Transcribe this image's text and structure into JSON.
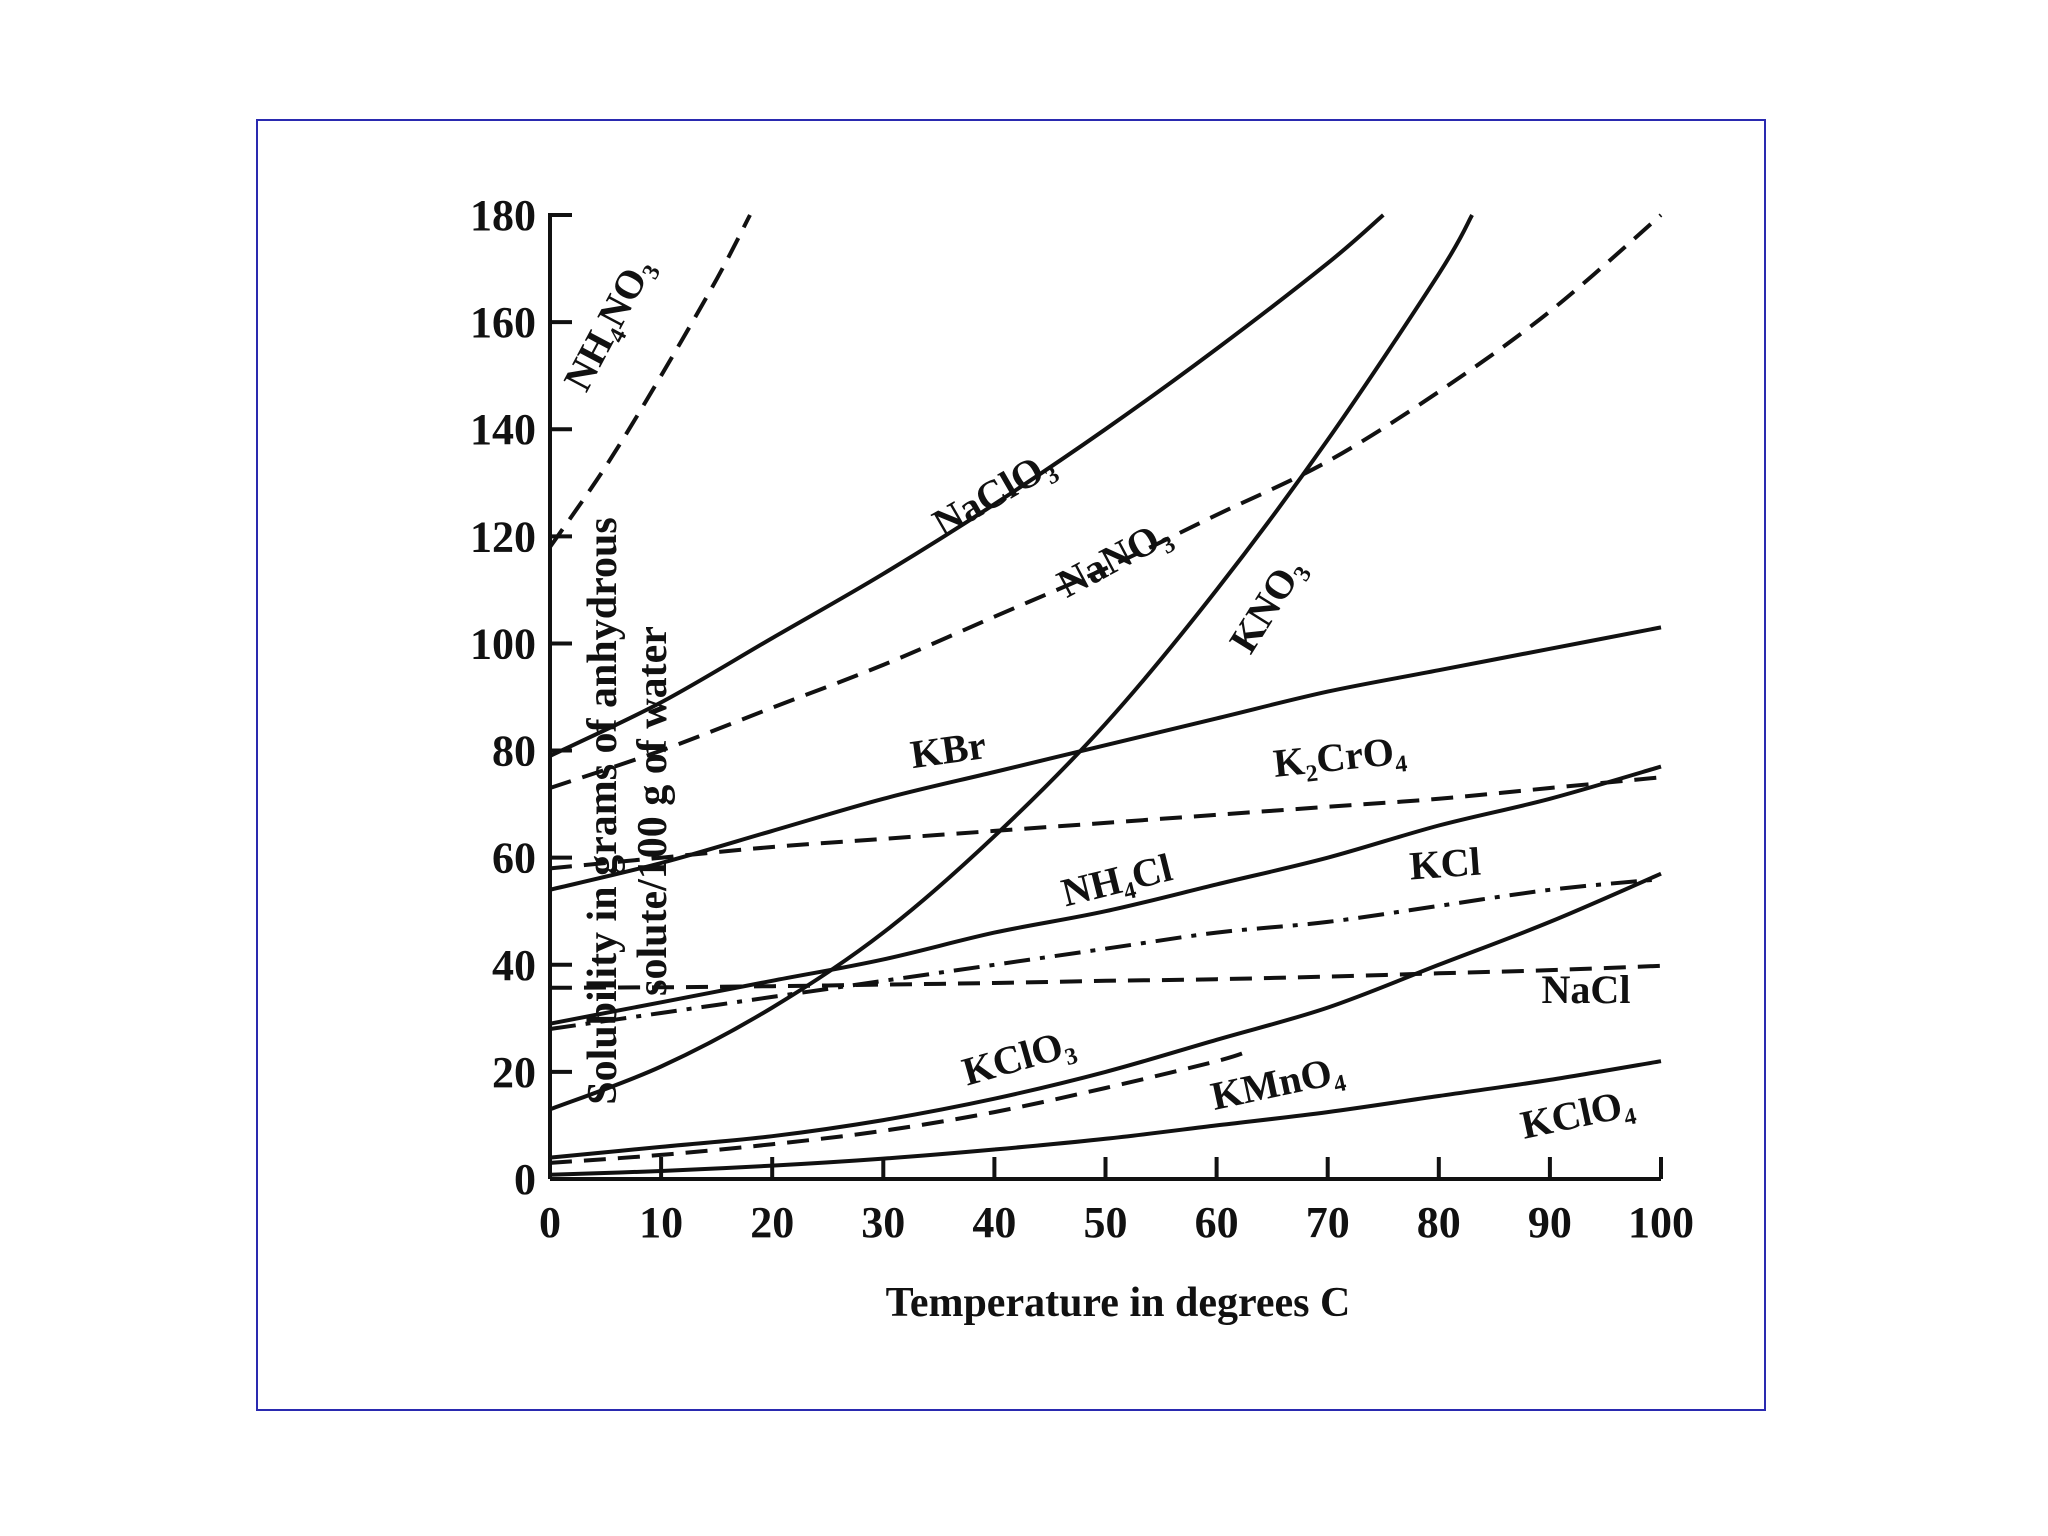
{
  "chart_data": {
    "type": "line",
    "xlabel": "Temperature in degrees C",
    "ylabel_lines": [
      "Solubility in grams of anhydrous",
      "solute/100 g of water"
    ],
    "xlim": [
      0,
      100
    ],
    "ylim": [
      0,
      180
    ],
    "xticks": [
      0,
      10,
      20,
      30,
      40,
      50,
      60,
      70,
      80,
      90,
      100
    ],
    "yticks": [
      0,
      20,
      40,
      60,
      80,
      100,
      120,
      140,
      160,
      180
    ],
    "grid": false,
    "series": [
      {
        "key": "nh4no3",
        "name": "NH₄NO₃",
        "style": "dashed",
        "x": [
          0,
          5,
          10,
          15,
          18
        ],
        "y": [
          118,
          133,
          150,
          168,
          180
        ]
      },
      {
        "key": "naclo3",
        "name": "NaClO₃",
        "style": "solid",
        "x": [
          0,
          10,
          20,
          30,
          40,
          50,
          60,
          70,
          75
        ],
        "y": [
          79,
          89,
          101,
          113,
          126,
          140,
          155,
          171,
          180
        ]
      },
      {
        "key": "nano3",
        "name": "NaNO₃",
        "style": "dashed",
        "x": [
          0,
          10,
          20,
          30,
          40,
          50,
          60,
          70,
          80,
          90,
          100
        ],
        "y": [
          73,
          80,
          88,
          96,
          105,
          114,
          124,
          134,
          147,
          162,
          180
        ]
      },
      {
        "key": "kno3",
        "name": "KNO₃",
        "style": "solid",
        "x": [
          0,
          10,
          20,
          30,
          40,
          50,
          60,
          70,
          80,
          83
        ],
        "y": [
          13,
          21,
          32,
          46,
          64,
          85,
          110,
          138,
          169,
          180
        ]
      },
      {
        "key": "kbr",
        "name": "KBr",
        "style": "solid",
        "x": [
          0,
          10,
          20,
          30,
          40,
          50,
          60,
          70,
          80,
          90,
          100
        ],
        "y": [
          54,
          59,
          65,
          71,
          76,
          81,
          86,
          91,
          95,
          99,
          103
        ]
      },
      {
        "key": "k2cro4",
        "name": "K₂CrO₄",
        "style": "dashed",
        "x": [
          0,
          10,
          20,
          30,
          40,
          50,
          60,
          70,
          80,
          90,
          100
        ],
        "y": [
          58,
          60,
          62,
          63.5,
          65,
          66.5,
          68,
          69.5,
          71,
          73,
          75
        ]
      },
      {
        "key": "nh4cl",
        "name": "NH₄Cl",
        "style": "solid",
        "x": [
          0,
          10,
          20,
          30,
          40,
          50,
          60,
          70,
          80,
          90,
          100
        ],
        "y": [
          29,
          33,
          37,
          41,
          46,
          50,
          55,
          60,
          66,
          71,
          77
        ]
      },
      {
        "key": "kcl",
        "name": "KCl",
        "style": "dashdot",
        "x": [
          0,
          10,
          20,
          30,
          40,
          50,
          60,
          70,
          80,
          90,
          100
        ],
        "y": [
          28,
          31,
          34,
          37,
          40,
          43,
          46,
          48,
          51,
          54,
          56
        ]
      },
      {
        "key": "nacl",
        "name": "NaCl",
        "style": "dashed",
        "x": [
          0,
          10,
          20,
          30,
          40,
          50,
          60,
          70,
          80,
          90,
          100
        ],
        "y": [
          35.7,
          35.8,
          36,
          36.3,
          36.6,
          37,
          37.3,
          37.8,
          38.4,
          39,
          39.8
        ]
      },
      {
        "key": "kclo3",
        "name": "KClO₃",
        "style": "solid",
        "x": [
          0,
          10,
          20,
          30,
          40,
          50,
          60,
          70,
          80,
          90,
          100
        ],
        "y": [
          4,
          6,
          8,
          11,
          15,
          20,
          26,
          32,
          40,
          48,
          57
        ]
      },
      {
        "key": "kmno4",
        "name": "KMnO₄",
        "style": "dashed",
        "x": [
          0,
          10,
          20,
          30,
          40,
          50,
          60,
          63
        ],
        "y": [
          3,
          4.5,
          6.5,
          9,
          12.5,
          17,
          22,
          24
        ]
      },
      {
        "key": "kclo4",
        "name": "KClO₄",
        "style": "solid",
        "x": [
          0,
          10,
          20,
          30,
          40,
          50,
          60,
          70,
          80,
          90,
          100
        ],
        "y": [
          0.8,
          1.5,
          2.5,
          3.8,
          5.5,
          7.5,
          10,
          12.5,
          15.5,
          18.5,
          22
        ]
      }
    ]
  }
}
